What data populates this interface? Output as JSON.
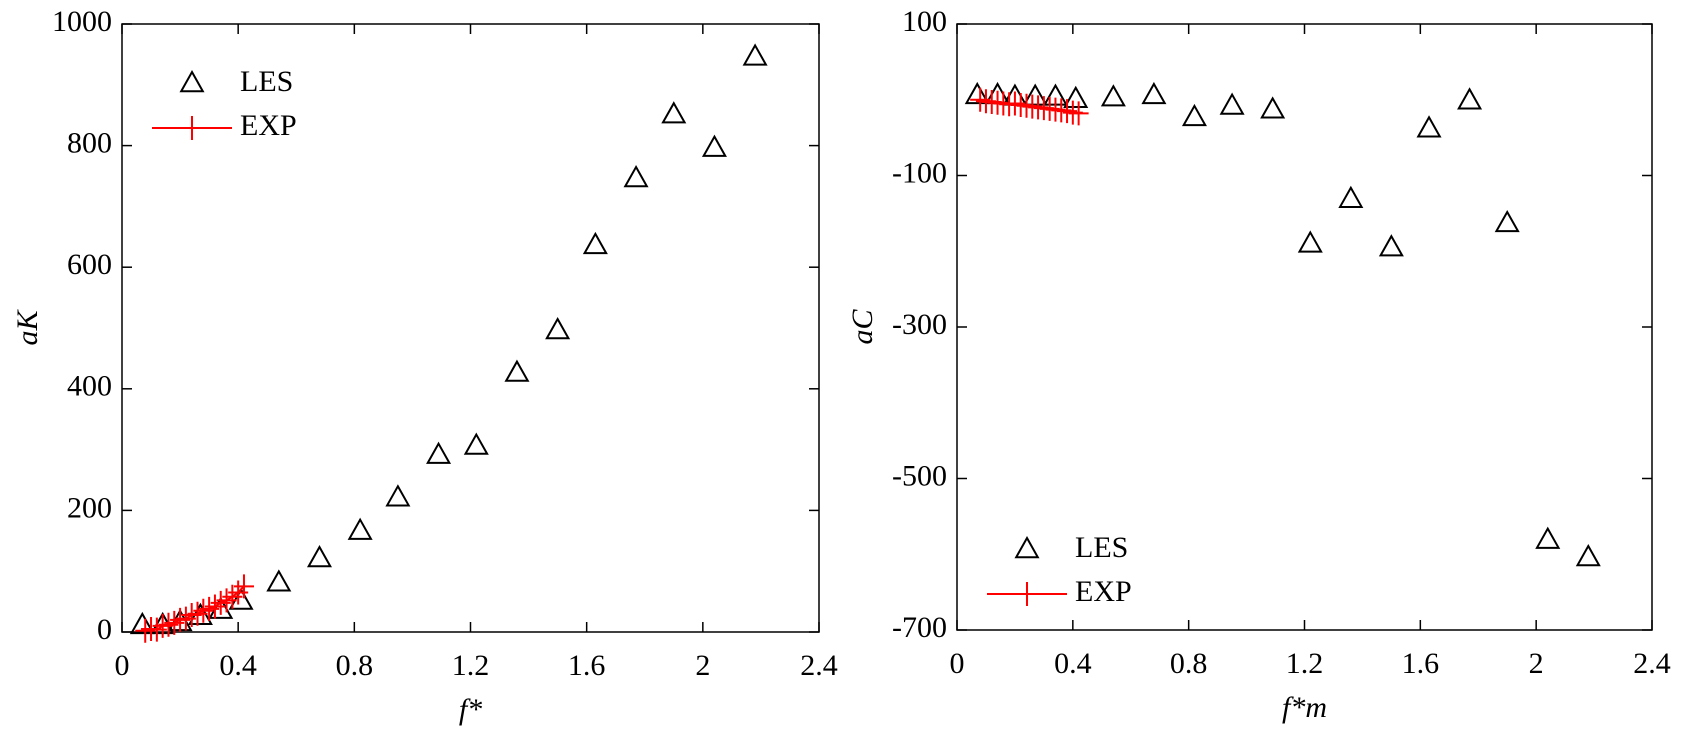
{
  "chart_data": [
    {
      "type": "scatter",
      "x_label": "f*",
      "y_label": "aK",
      "xlim": [
        0,
        2.4
      ],
      "xticks": [
        0,
        0.4,
        0.8,
        1.2,
        1.6,
        2,
        2.4
      ],
      "ylim": [
        0,
        1000
      ],
      "yticks": [
        0,
        200,
        400,
        600,
        800,
        1000
      ],
      "legend": "upper-left",
      "series": [
        {
          "name": "LES",
          "color": "#000000",
          "marker": "triangle",
          "x": [
            0.07,
            0.14,
            0.2,
            0.27,
            0.34,
            0.41,
            0.54,
            0.68,
            0.82,
            0.95,
            1.09,
            1.22,
            1.36,
            1.5,
            1.63,
            1.77,
            1.9,
            2.04,
            2.18
          ],
          "values": [
            10,
            10,
            15,
            25,
            35,
            50,
            80,
            120,
            165,
            220,
            290,
            305,
            425,
            495,
            635,
            745,
            850,
            795,
            945
          ]
        },
        {
          "name": "EXP",
          "color": "#ff0000",
          "marker": "plus",
          "x": [
            0.08,
            0.1,
            0.12,
            0.14,
            0.16,
            0.18,
            0.2,
            0.22,
            0.24,
            0.26,
            0.28,
            0.3,
            0.32,
            0.34,
            0.36,
            0.38,
            0.4,
            0.42
          ],
          "values": [
            2,
            5,
            4,
            10,
            12,
            15,
            20,
            22,
            28,
            30,
            35,
            38,
            42,
            48,
            52,
            58,
            65,
            75
          ]
        }
      ]
    },
    {
      "type": "scatter",
      "x_label": "f*m",
      "y_label": "aC",
      "xlim": [
        0,
        2.4
      ],
      "xticks": [
        0,
        0.4,
        0.8,
        1.2,
        1.6,
        2,
        2.4
      ],
      "ylim": [
        -700,
        100
      ],
      "yticks": [
        -700,
        -500,
        -300,
        -100,
        100
      ],
      "legend": "lower-left",
      "series": [
        {
          "name": "LES",
          "color": "#000000",
          "marker": "triangle",
          "x": [
            0.07,
            0.14,
            0.2,
            0.27,
            0.34,
            0.41,
            0.54,
            0.68,
            0.82,
            0.95,
            1.09,
            1.22,
            1.36,
            1.5,
            1.63,
            1.77,
            1.9,
            2.04,
            2.18
          ],
          "values": [
            5,
            5,
            3,
            3,
            3,
            0,
            2,
            5,
            -24,
            -9,
            -14,
            -191,
            -132,
            -196,
            -39,
            -2,
            -164,
            -582,
            -605
          ]
        },
        {
          "name": "EXP",
          "color": "#ff0000",
          "marker": "plus",
          "x": [
            0.08,
            0.1,
            0.12,
            0.14,
            0.16,
            0.18,
            0.2,
            0.22,
            0.24,
            0.26,
            0.28,
            0.3,
            0.32,
            0.34,
            0.36,
            0.38,
            0.4,
            0.42
          ],
          "values": [
            0,
            -2,
            -3,
            -4,
            -5,
            -6,
            -5,
            -7,
            -8,
            -9,
            -10,
            -11,
            -12,
            -13,
            -14,
            -15,
            -17,
            -18
          ]
        }
      ]
    }
  ]
}
